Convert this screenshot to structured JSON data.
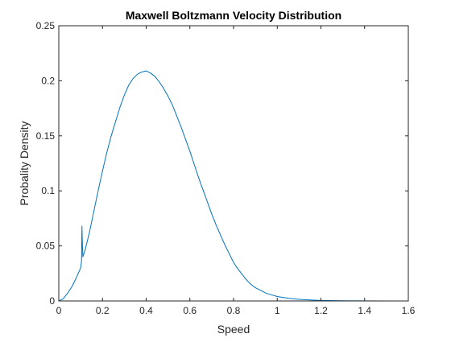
{
  "chart_data": {
    "type": "line",
    "title": "Maxwell Boltzmann Velocity Distribution",
    "xlabel": "Speed",
    "ylabel": "Probality Density",
    "xlim": [
      0,
      1.6
    ],
    "ylim": [
      0,
      0.25
    ],
    "xticks": [
      0,
      0.2,
      0.4,
      0.6,
      0.8,
      1,
      1.2,
      1.4,
      1.6
    ],
    "xtick_labels": [
      "0",
      "0.2",
      "0.4",
      "0.6",
      "0.8",
      "1",
      "1.2",
      "1.4",
      "1.6"
    ],
    "yticks": [
      0,
      0.05,
      0.1,
      0.15,
      0.2,
      0.25
    ],
    "ytick_labels": [
      "0",
      "0.05",
      "0.1",
      "0.15",
      "0.2",
      "0.25"
    ],
    "grid": false,
    "legend": "none",
    "line_color": "#0072BD",
    "series": [
      {
        "x": [
          0,
          0.02,
          0.04,
          0.06,
          0.08,
          0.1,
          0.104,
          0.106,
          0.108,
          0.11,
          0.12,
          0.14,
          0.16,
          0.18,
          0.2,
          0.22,
          0.24,
          0.26,
          0.28,
          0.3,
          0.32,
          0.34,
          0.36,
          0.38,
          0.4,
          0.42,
          0.44,
          0.46,
          0.48,
          0.5,
          0.52,
          0.54,
          0.56,
          0.58,
          0.6,
          0.62,
          0.64,
          0.66,
          0.68,
          0.7,
          0.72,
          0.74,
          0.76,
          0.78,
          0.8,
          0.82,
          0.84,
          0.86,
          0.88,
          0.9,
          0.95,
          1.0,
          1.05,
          1.1,
          1.15,
          1.2,
          1.3,
          1.4,
          1.5,
          1.55
        ],
        "y": [
          0,
          0.002,
          0.007,
          0.013,
          0.021,
          0.03,
          0.036,
          0.068,
          0.052,
          0.04,
          0.046,
          0.062,
          0.081,
          0.1,
          0.118,
          0.135,
          0.15,
          0.163,
          0.176,
          0.187,
          0.196,
          0.202,
          0.206,
          0.208,
          0.209,
          0.207,
          0.204,
          0.199,
          0.193,
          0.186,
          0.178,
          0.168,
          0.158,
          0.147,
          0.136,
          0.124,
          0.112,
          0.101,
          0.09,
          0.079,
          0.069,
          0.06,
          0.051,
          0.043,
          0.035,
          0.029,
          0.024,
          0.019,
          0.015,
          0.012,
          0.007,
          0.004,
          0.0025,
          0.0015,
          0.0009,
          0.0005,
          0.0002,
          0.0001,
          3e-05,
          0
        ]
      }
    ]
  }
}
